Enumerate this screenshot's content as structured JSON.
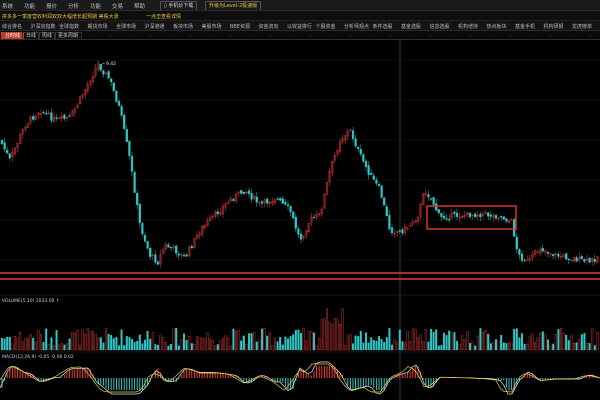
{
  "menubar": {
    "items": [
      "系统",
      "功能",
      "报价",
      "分析",
      "功能",
      "交易",
      "帮助"
    ],
    "phone_button": "手机炒下载",
    "upgrade_button": "升级为Level-2极速版"
  },
  "newsbar": {
    "headline": "拼多多一季度营收利润双双大幅增长超预期 美股大涨",
    "link": "一点击查看详情"
  },
  "navbar": {
    "items": [
      "综合排名",
      "沪深京指数",
      "全球指数",
      "期货市场",
      "全球市场",
      "沪深港通",
      "板块市场",
      "美股市场",
      "BBE资源",
      "资金流向",
      "以收益排行",
      "个股资金",
      "分析师观点",
      "条件选股",
      "基金选股",
      "信息选股",
      "机构增持",
      "热点板块",
      "基金手机",
      "机构研报",
      "龙虎榜单"
    ]
  },
  "tabbar": {
    "tabs": [
      "分时线",
      "日线",
      "周线",
      "更多周期"
    ]
  },
  "chart_data": {
    "type": "candlestick",
    "high_label": "9.42",
    "volume_label": "VOLUME(5,10) 2033.00 ↑",
    "macd_label": "MACD(12,26,9) -0.05 -0.06 0.02",
    "colors": {
      "up": "#f23b3b",
      "down": "#2ec8c8",
      "ma5": "#e6e6e6",
      "ma10": "#e8d23a",
      "box": "#e53935",
      "support": "#e53935"
    }
  }
}
